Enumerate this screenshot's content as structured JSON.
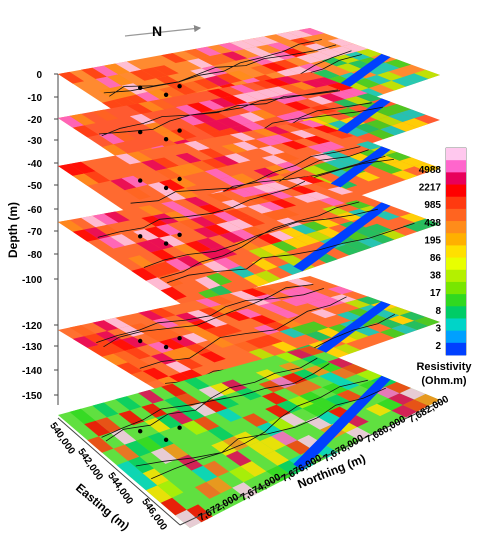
{
  "chart_data": {
    "type": "heatmap",
    "north_label": "N",
    "depth_axis": {
      "label": "Depth (m)",
      "ticks": [
        0,
        -10,
        -20,
        -30,
        -40,
        -50,
        -60,
        -70,
        -80,
        -100,
        -120,
        -130,
        -140,
        -150
      ]
    },
    "easting_axis": {
      "label": "Easting (m)",
      "ticks": [
        "540,000",
        "542,000",
        "544,000",
        "546,000"
      ]
    },
    "northing_axis": {
      "label": "Northing (m)",
      "ticks": [
        "7,672,000",
        "7,674,000",
        "7,676,000",
        "7,678,000",
        "7,680,000",
        "7,682,000"
      ]
    },
    "colorbar": {
      "title": [
        "Resistivity",
        "(Ohm.m)"
      ],
      "labels": [
        "4988",
        "2217",
        "985",
        "438",
        "195",
        "86",
        "38",
        "17",
        "8",
        "3",
        "2"
      ],
      "colors": [
        "#ffc8ee",
        "#ff66cc",
        "#e8005a",
        "#ff0000",
        "#ff3a10",
        "#ff6420",
        "#ff8c1a",
        "#ffb000",
        "#ffe000",
        "#e8ff00",
        "#b4f000",
        "#78e600",
        "#30d820",
        "#00cc66",
        "#00d4c8",
        "#00a0ff",
        "#0040ff"
      ]
    },
    "slices": [
      {
        "dominant": "#ff8a30"
      },
      {
        "dominant": "#ff5a30"
      },
      {
        "dominant": "#ff6a30"
      },
      {
        "dominant": "#ff6a30"
      },
      {
        "dominant": "#ff7030"
      },
      {
        "dominant": "#60e040"
      }
    ]
  }
}
